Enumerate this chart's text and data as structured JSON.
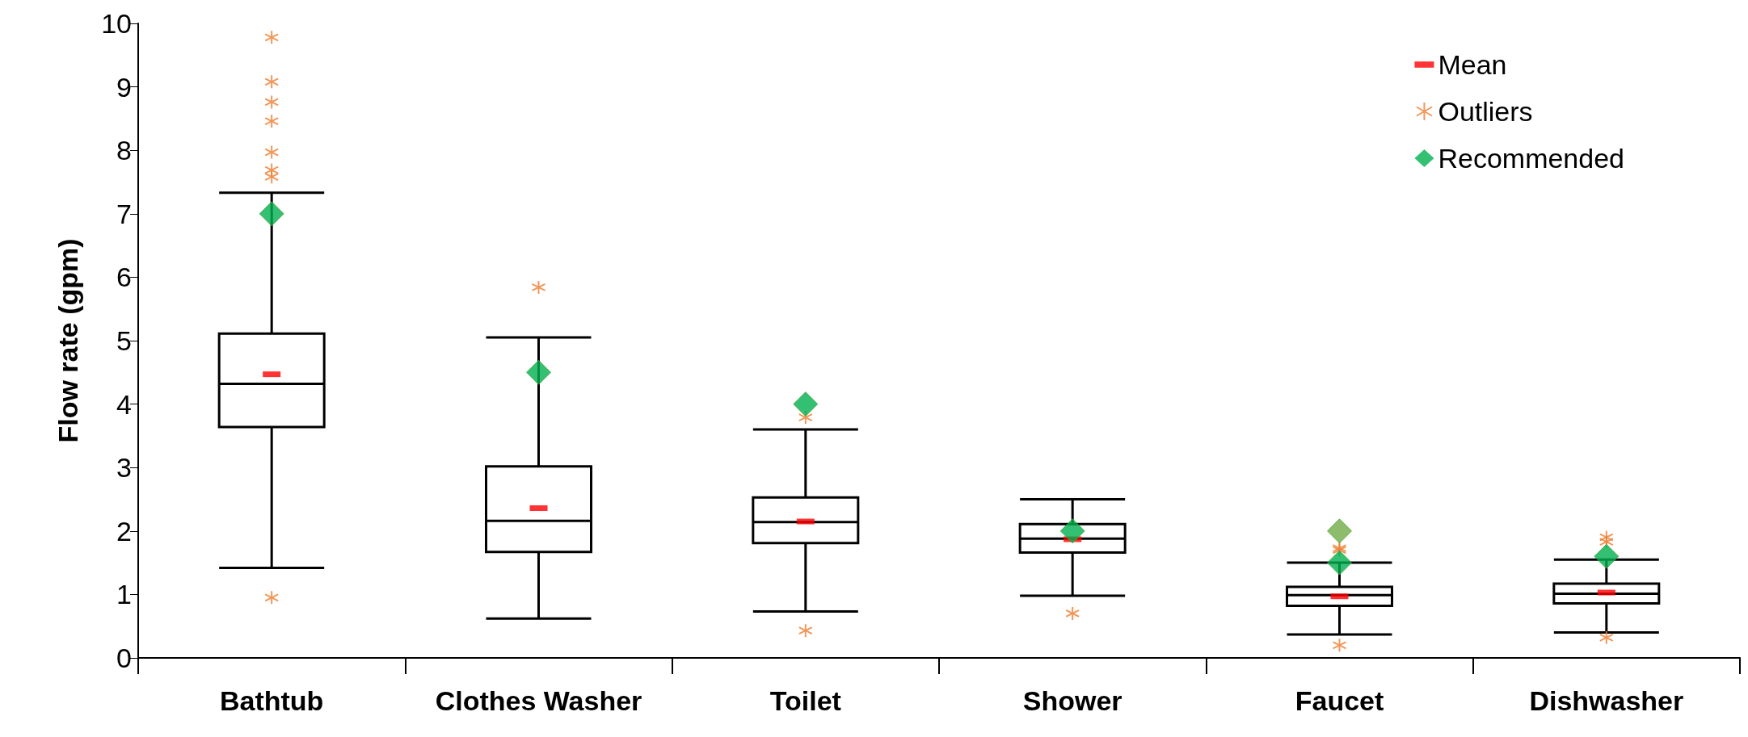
{
  "chart_data": {
    "type": "box",
    "ylabel": "Flow rate (gpm)",
    "categories": [
      "Bathtub",
      "Clothes Washer",
      "Toilet",
      "Shower",
      "Faucet",
      "Dishwasher"
    ],
    "ylim": [
      0,
      10
    ],
    "yticks": [
      0,
      1,
      2,
      3,
      4,
      5,
      6,
      7,
      8,
      9,
      10
    ],
    "grid": false,
    "legend": "top right",
    "series": [
      {
        "type": "box",
        "color": "#000000",
        "boxes": [
          {
            "low": 1.42,
            "q1": 3.64,
            "median": 4.32,
            "q3": 5.11,
            "high": 7.33
          },
          {
            "low": 0.62,
            "q1": 1.67,
            "median": 2.16,
            "q3": 3.02,
            "high": 5.05
          },
          {
            "low": 0.73,
            "q1": 1.81,
            "median": 2.14,
            "q3": 2.53,
            "high": 3.6
          },
          {
            "low": 0.98,
            "q1": 1.66,
            "median": 1.88,
            "q3": 2.11,
            "high": 2.5
          },
          {
            "low": 0.37,
            "q1": 0.82,
            "median": 0.99,
            "q3": 1.12,
            "high": 1.5
          },
          {
            "low": 0.4,
            "q1": 0.86,
            "median": 1.01,
            "q3": 1.17,
            "high": 1.55
          }
        ]
      },
      {
        "type": "scatter",
        "name": "Mean",
        "color": "#ff0000",
        "x": [
          "Bathtub",
          "Clothes Washer",
          "Toilet",
          "Shower",
          "Faucet",
          "Dishwasher"
        ],
        "values": [
          4.47,
          2.36,
          2.15,
          1.87,
          0.97,
          1.03
        ]
      },
      {
        "type": "scatter",
        "name": "Outliers",
        "color": "#ed7d31",
        "marker": "cross",
        "x": [
          "Bathtub",
          "Bathtub",
          "Bathtub",
          "Bathtub",
          "Bathtub",
          "Bathtub",
          "Bathtub",
          "Bathtub",
          "Clothes Washer",
          "Toilet",
          "Toilet",
          "Shower",
          "Faucet",
          "Faucet",
          "Faucet",
          "Dishwasher",
          "Dishwasher",
          "Dishwasher"
        ],
        "values": [
          9.78,
          9.08,
          8.76,
          8.46,
          7.97,
          7.69,
          7.58,
          0.95,
          5.84,
          3.79,
          0.43,
          0.7,
          1.73,
          1.7,
          0.2,
          1.9,
          1.83,
          0.32
        ]
      },
      {
        "type": "scatter",
        "name": "Recommended",
        "color": "#00b050",
        "marker": "diamond",
        "x": [
          "Bathtub",
          "Clothes Washer",
          "Toilet",
          "Shower",
          "Faucet",
          "Faucet",
          "Dishwasher"
        ],
        "values": [
          7.0,
          4.5,
          4.0,
          2.0,
          2.0,
          1.5,
          1.6
        ],
        "colors": [
          "#00b050",
          "#00b050",
          "#00b050",
          "#00b050",
          "#70ad47",
          "#00b050",
          "#00b050"
        ]
      }
    ]
  }
}
